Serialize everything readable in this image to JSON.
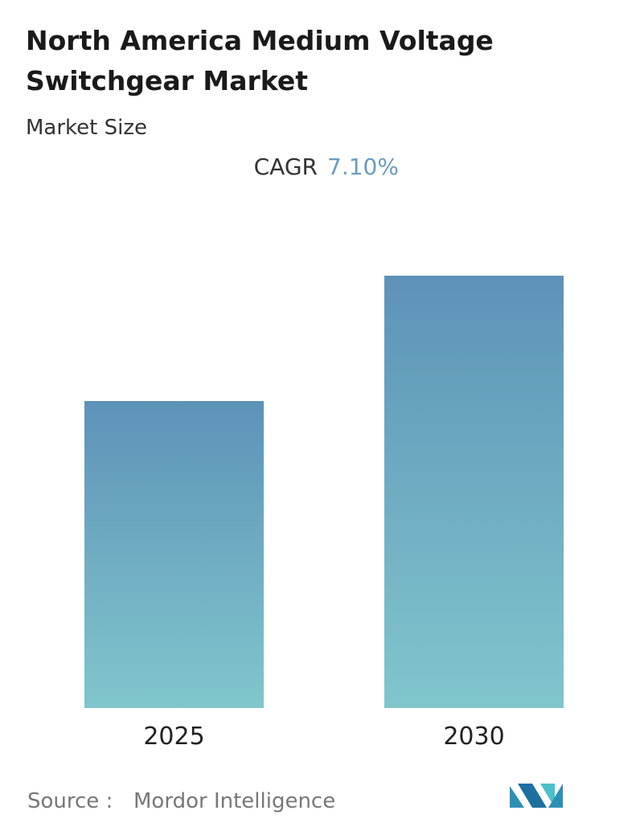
{
  "title": "North America Medium Voltage Switchgear Market",
  "subtitle": "Market Size",
  "cagr_label": "CAGR",
  "cagr_value": "7.10%",
  "source_label": "Source :",
  "source": "Mordor Intelligence",
  "chart_data": {
    "type": "bar",
    "categories": [
      "2025",
      "2030"
    ],
    "values": [
      71,
      100
    ],
    "ylim": [
      0,
      100
    ],
    "colors": [
      "#5e92b8",
      "#80c6cc"
    ]
  }
}
